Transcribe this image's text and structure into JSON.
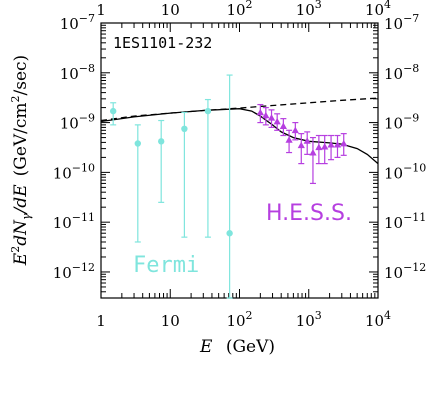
{
  "chart_data": {
    "type": "scatter",
    "source_label": "1ES1101-232",
    "xlabel_italic": "E",
    "xlabel_unit": "(GeV)",
    "ylabel": {
      "prefix": "E",
      "sq": "2",
      "mid": "dN",
      "sub": "γ",
      "tail": "/dE",
      "unit_a": "(GeV/cm",
      "unit_sq": "2",
      "unit_b": "/sec)"
    },
    "x_scale": "log",
    "y_scale": "log",
    "xlim": [
      1,
      10000
    ],
    "ylim": [
      3e-13,
      1e-07
    ],
    "x_ticks": [
      {
        "value": 1,
        "base": "1",
        "exp": ""
      },
      {
        "value": 10,
        "base": "10",
        "exp": ""
      },
      {
        "value": 100,
        "base": "10",
        "exp": "2"
      },
      {
        "value": 1000,
        "base": "10",
        "exp": "3"
      },
      {
        "value": 10000,
        "base": "10",
        "exp": "4"
      }
    ],
    "y_ticks": [
      {
        "value": 1e-07,
        "base": "10",
        "exp": "−7"
      },
      {
        "value": 1e-08,
        "base": "10",
        "exp": "−8"
      },
      {
        "value": 1e-09,
        "base": "10",
        "exp": "−9"
      },
      {
        "value": 1e-10,
        "base": "10",
        "exp": "−10"
      },
      {
        "value": 1e-11,
        "base": "10",
        "exp": "−11"
      },
      {
        "value": 1e-12,
        "base": "10",
        "exp": "−12"
      }
    ],
    "colors": {
      "fermi": "#7fe5dd",
      "hess": "#b63fe0",
      "axes": "#000000"
    },
    "series": [
      {
        "name": "Fermi",
        "marker": "circle",
        "points": [
          {
            "x": 1.5,
            "y": 1.7e-09,
            "ylo": 9e-10,
            "yhi": 2.5e-09
          },
          {
            "x": 3.4,
            "y": 3.8e-10,
            "ylo": 4e-12,
            "yhi": 9e-10
          },
          {
            "x": 7.4,
            "y": 4.2e-10,
            "ylo": 2.5e-11,
            "yhi": 1.1e-09
          },
          {
            "x": 16,
            "y": 7.5e-10,
            "ylo": 5e-12,
            "yhi": 1.6e-09
          },
          {
            "x": 35,
            "y": 1.7e-09,
            "ylo": 5e-12,
            "yhi": 2.9e-09
          },
          {
            "x": 72,
            "y": 6e-12,
            "ylo": 3e-13,
            "yhi": 9e-09
          }
        ]
      },
      {
        "name": "H.E.S.S.",
        "marker": "triangle",
        "points": [
          {
            "x": 200,
            "y": 1.6e-09,
            "ylo": 1e-09,
            "yhi": 2.3e-09
          },
          {
            "x": 240,
            "y": 1.4e-09,
            "ylo": 9e-10,
            "yhi": 2e-09
          },
          {
            "x": 290,
            "y": 1.25e-09,
            "ylo": 8e-10,
            "yhi": 1.8e-09
          },
          {
            "x": 350,
            "y": 1.05e-09,
            "ylo": 7e-10,
            "yhi": 1.5e-09
          },
          {
            "x": 430,
            "y": 8.5e-10,
            "ylo": 5.5e-10,
            "yhi": 1.2e-09
          },
          {
            "x": 520,
            "y": 4.5e-10,
            "ylo": 2.5e-10,
            "yhi": 7e-10
          },
          {
            "x": 640,
            "y": 7e-10,
            "ylo": 4.5e-10,
            "yhi": 1e-09
          },
          {
            "x": 780,
            "y": 3.5e-10,
            "ylo": 1.5e-10,
            "yhi": 6e-10
          },
          {
            "x": 950,
            "y": 4.3e-10,
            "ylo": 2.3e-10,
            "yhi": 6.5e-10
          },
          {
            "x": 1150,
            "y": 2.5e-10,
            "ylo": 6e-11,
            "yhi": 5e-10
          },
          {
            "x": 1400,
            "y": 3.2e-10,
            "ylo": 1.5e-10,
            "yhi": 5.5e-10
          },
          {
            "x": 1700,
            "y": 3.3e-10,
            "ylo": 1.5e-10,
            "yhi": 5.5e-10
          },
          {
            "x": 2100,
            "y": 3.6e-10,
            "ylo": 1.8e-10,
            "yhi": 5.5e-10
          },
          {
            "x": 2600,
            "y": 3.6e-10,
            "ylo": 2e-10,
            "yhi": 5.5e-10
          },
          {
            "x": 3200,
            "y": 3.8e-10,
            "ylo": 2.2e-10,
            "yhi": 6e-10
          }
        ]
      }
    ],
    "model_curves": [
      {
        "style": "solid",
        "points": [
          [
            1,
            1.05e-09
          ],
          [
            3,
            1.3e-09
          ],
          [
            10,
            1.55e-09
          ],
          [
            30,
            1.75e-09
          ],
          [
            100,
            1.9e-09
          ],
          [
            150,
            1.7e-09
          ],
          [
            200,
            1.35e-09
          ],
          [
            300,
            9e-10
          ],
          [
            400,
            6.5e-10
          ],
          [
            600,
            5e-10
          ],
          [
            1000,
            4.2e-10
          ],
          [
            2000,
            3.9e-10
          ],
          [
            3000,
            3.7e-10
          ],
          [
            5000,
            3e-10
          ],
          [
            7000,
            2.3e-10
          ],
          [
            10000,
            1.5e-10
          ]
        ]
      },
      {
        "style": "dashed",
        "points": [
          [
            1,
            1.1e-09
          ],
          [
            3,
            1.35e-09
          ],
          [
            10,
            1.55e-09
          ],
          [
            30,
            1.75e-09
          ],
          [
            100,
            1.95e-09
          ],
          [
            300,
            2.2e-09
          ],
          [
            1000,
            2.5e-09
          ],
          [
            3000,
            2.8e-09
          ],
          [
            10000,
            3.1e-09
          ]
        ]
      }
    ]
  }
}
